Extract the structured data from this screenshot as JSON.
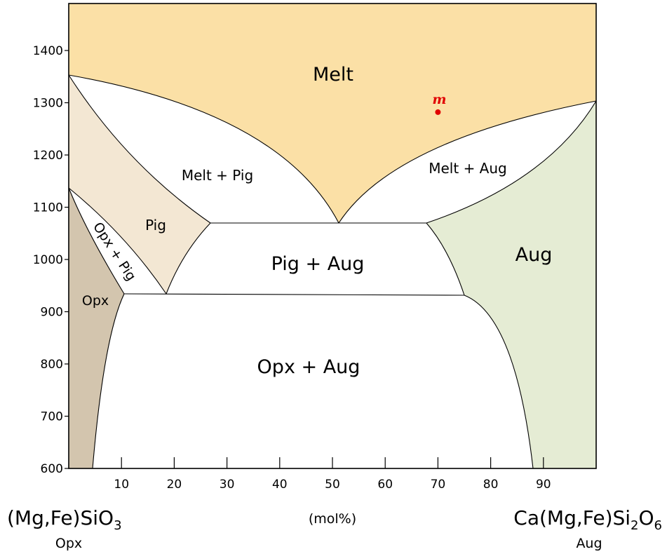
{
  "chart_data": {
    "type": "phase-diagram",
    "x_axis": {
      "unit_label": "(mol%)",
      "range": [
        0,
        100
      ],
      "ticks": [
        10,
        20,
        30,
        40,
        50,
        60,
        70,
        80,
        90
      ],
      "tick_labels": [
        "10",
        "20",
        "30",
        "40",
        "50",
        "60",
        "70",
        "80",
        "90"
      ],
      "left_endmember": {
        "formula": "(Mg,Fe)SiO",
        "subscript": "3",
        "name": "Opx"
      },
      "right_endmember": {
        "formula_prefix": "Ca(Mg,Fe)Si",
        "sub1": "2",
        "mid": "O",
        "sub2": "6",
        "name": "Aug"
      }
    },
    "y_axis": {
      "range": [
        600,
        1490
      ],
      "ticks": [
        600,
        700,
        800,
        900,
        1000,
        1100,
        1200,
        1300,
        1400
      ],
      "tick_labels": [
        "600",
        "700",
        "800",
        "900",
        "1000",
        "1100",
        "1200",
        "1300",
        "1400"
      ]
    },
    "fields": [
      {
        "name": "Melt",
        "color": "#fbe0a6"
      },
      {
        "name": "Melt + Pig",
        "color": "#ffffff"
      },
      {
        "name": "Melt + Aug",
        "color": "#ffffff"
      },
      {
        "name": "Pig",
        "color": "#f3e7d3"
      },
      {
        "name": "Opx + Pig",
        "color": "#ffffff"
      },
      {
        "name": "Opx",
        "color": "#d3c5ae"
      },
      {
        "name": "Pig + Aug",
        "color": "#ffffff"
      },
      {
        "name": "Opx + Aug",
        "color": "#ffffff"
      },
      {
        "name": "Aug",
        "color": "#e5ecd4"
      }
    ],
    "points": [
      {
        "label": "m",
        "x": 70,
        "y": 1282,
        "color": "#e00000"
      }
    ],
    "invariants": [
      {
        "x": 51,
        "y": 1070
      },
      {
        "x": 27,
        "y": 1070
      },
      {
        "x": 67,
        "y": 1070
      },
      {
        "x": 19,
        "y": 934
      },
      {
        "x": 11,
        "y": 934
      },
      {
        "x": 75,
        "y": 932
      }
    ],
    "melting_points": [
      {
        "x": 0,
        "y": 1352
      },
      {
        "x": 100,
        "y": 1304
      }
    ]
  }
}
